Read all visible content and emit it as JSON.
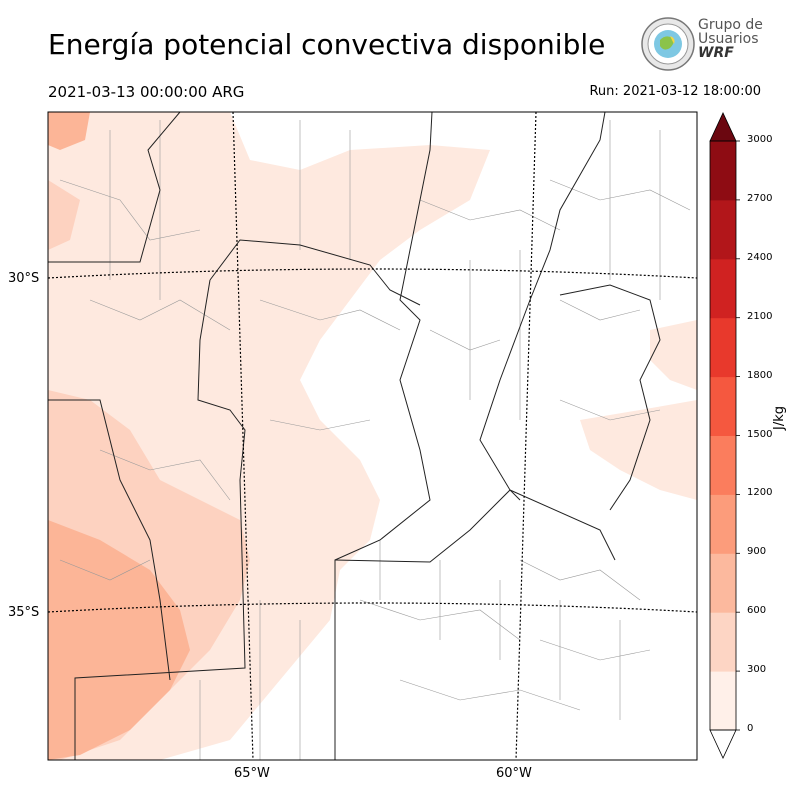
{
  "header": {
    "title": "Energía potencial convectiva disponible",
    "valid_time": "2021-03-13 00:00:00 ARG",
    "run": "Run: 2021-03-12 18:00:00"
  },
  "logo": {
    "line1": "Grupo de",
    "line2": "Usuarios",
    "line3": "WRF",
    "icon": "globe-seal-icon"
  },
  "map": {
    "lat_labels": [
      "30°S",
      "35°S"
    ],
    "lon_labels": [
      "65°W",
      "60°W"
    ],
    "field_colors": [
      "#fee9df",
      "#fdd2c0",
      "#fcb597",
      "#fb9a78"
    ]
  },
  "colorbar": {
    "unit": "J/kg",
    "ticks": [
      "0",
      "300",
      "600",
      "900",
      "1200",
      "1500",
      "1800",
      "2100",
      "2400",
      "2700",
      "3000"
    ],
    "colors": [
      "#fff0e9",
      "#fdd5c4",
      "#fcb99e",
      "#fc9c7b",
      "#fb7d5d",
      "#f5583f",
      "#e8392c",
      "#d02221",
      "#b2161a",
      "#8e0c13",
      "#6b0710"
    ]
  }
}
